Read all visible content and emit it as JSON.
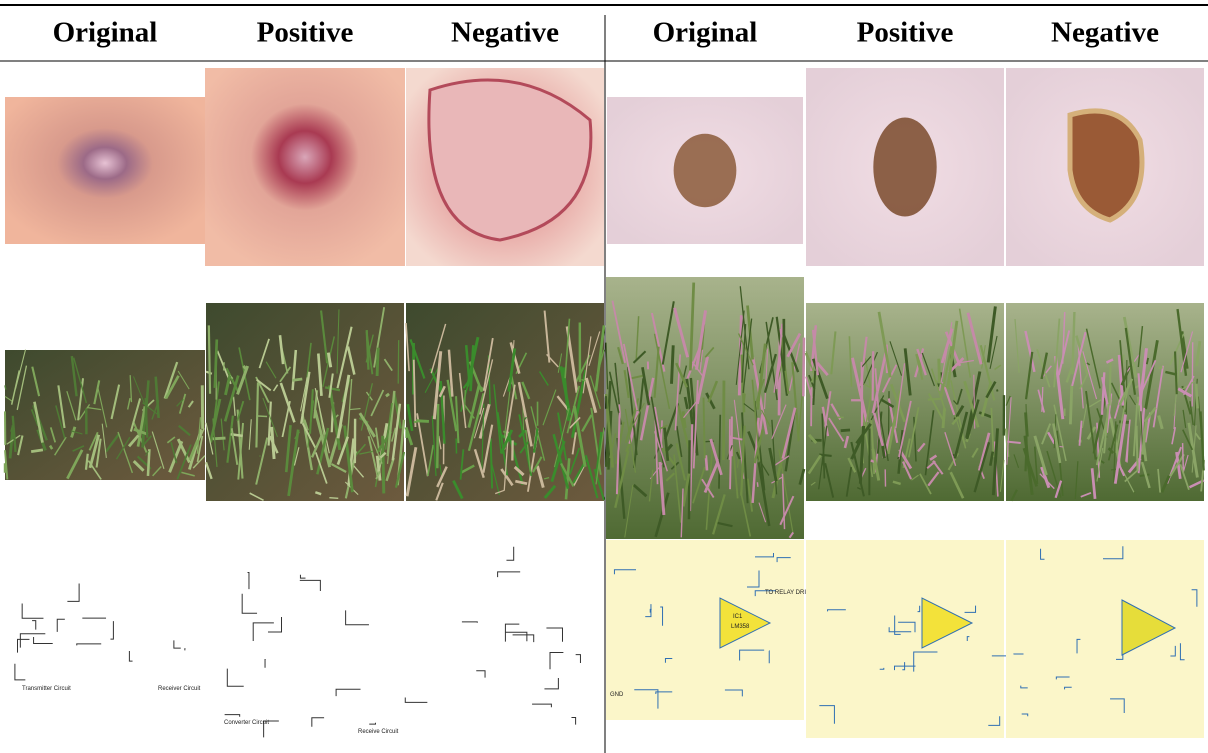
{
  "header": {
    "columns": [
      "Original",
      "Positive",
      "Negative",
      "Original",
      "Positive",
      "Negative"
    ]
  },
  "circuit_labels": {
    "transmitter": "Transmitter Circuit",
    "receiver": "Receiver Circuit",
    "ic": "IC1",
    "ic_part": "LM358",
    "relay": "TO RELAY DRIVER CIRCUIT",
    "gnd": "GND",
    "converter": "Converter Circuit",
    "receive": "Receive Circuit"
  }
}
